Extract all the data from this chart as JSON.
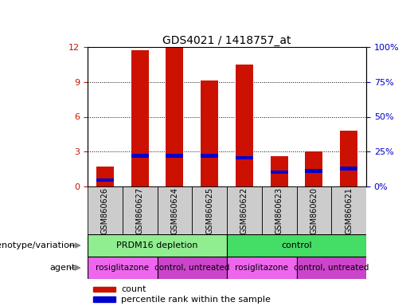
{
  "title": "GDS4021 / 1418757_at",
  "samples": [
    "GSM860626",
    "GSM860627",
    "GSM860624",
    "GSM860625",
    "GSM860622",
    "GSM860623",
    "GSM860620",
    "GSM860621"
  ],
  "counts": [
    1.7,
    11.7,
    11.9,
    9.1,
    10.5,
    2.6,
    3.0,
    4.8
  ],
  "percentile_bottom": [
    0.4,
    2.5,
    2.5,
    2.5,
    2.3,
    1.1,
    1.2,
    1.4
  ],
  "percentile_height": [
    0.3,
    0.3,
    0.3,
    0.3,
    0.3,
    0.3,
    0.3,
    0.3
  ],
  "bar_color": "#cc1100",
  "pct_color": "#0000cc",
  "ylim": [
    0,
    12
  ],
  "y2lim": [
    0,
    100
  ],
  "yticks": [
    0,
    3,
    6,
    9,
    12
  ],
  "y2ticks": [
    0,
    25,
    50,
    75,
    100
  ],
  "ylabel_color": "#cc1100",
  "y2label_color": "#0000cc",
  "groups": [
    {
      "label": "PRDM16 depletion",
      "start": 0,
      "end": 4,
      "color": "#90ee90"
    },
    {
      "label": "control",
      "start": 4,
      "end": 8,
      "color": "#44dd66"
    }
  ],
  "agents": [
    {
      "label": "rosiglitazone",
      "start": 0,
      "end": 2,
      "color": "#ee66ee"
    },
    {
      "label": "control, untreated",
      "start": 2,
      "end": 4,
      "color": "#cc44cc"
    },
    {
      "label": "rosiglitazone",
      "start": 4,
      "end": 6,
      "color": "#ee66ee"
    },
    {
      "label": "control, untreated",
      "start": 6,
      "end": 8,
      "color": "#cc44cc"
    }
  ],
  "background_color": "#ffffff",
  "bar_width": 0.5,
  "sample_label_fontsize": 7,
  "title_fontsize": 10,
  "tick_fontsize": 8,
  "legend_fontsize": 8,
  "row_label_fontsize": 8,
  "group_fontsize": 8,
  "agent_fontsize": 7.5
}
